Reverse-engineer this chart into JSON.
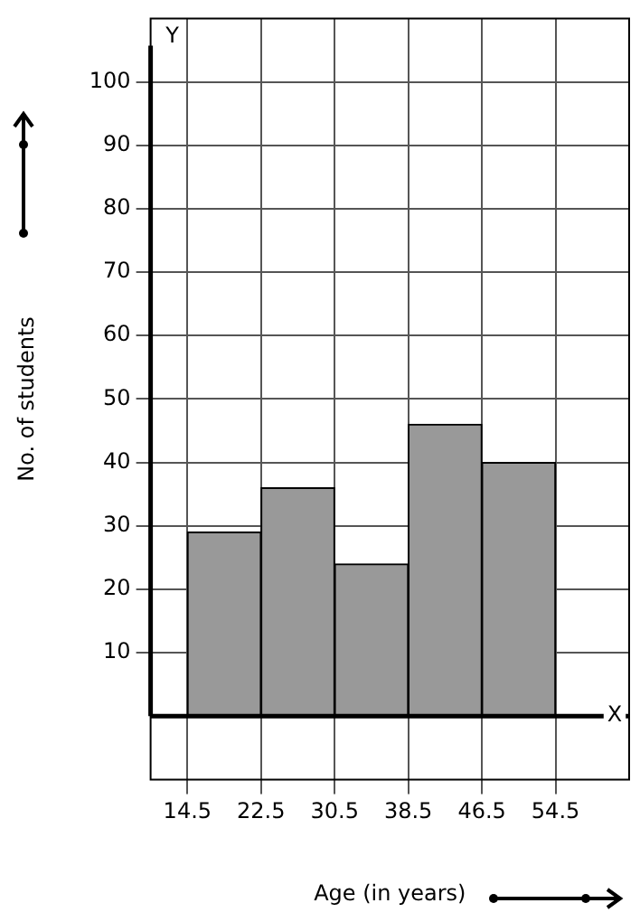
{
  "chart_data": {
    "type": "histogram",
    "xlabel": "Age (in years)",
    "ylabel": "No. of students",
    "bins": [
      14.5,
      22.5,
      30.5,
      38.5,
      46.5,
      54.5
    ],
    "values": [
      29,
      36,
      24,
      46,
      40
    ],
    "color": "#999999",
    "xlim": [
      10.5,
      62.5
    ],
    "xticks": [
      14.5,
      22.5,
      30.5,
      38.5,
      46.5,
      54.5
    ],
    "ylim": [
      -10,
      110
    ],
    "yticks": [
      10,
      20,
      30,
      40,
      50,
      60,
      70,
      80,
      90,
      100
    ],
    "grid": true,
    "annotations": [
      "X",
      "Y"
    ]
  }
}
